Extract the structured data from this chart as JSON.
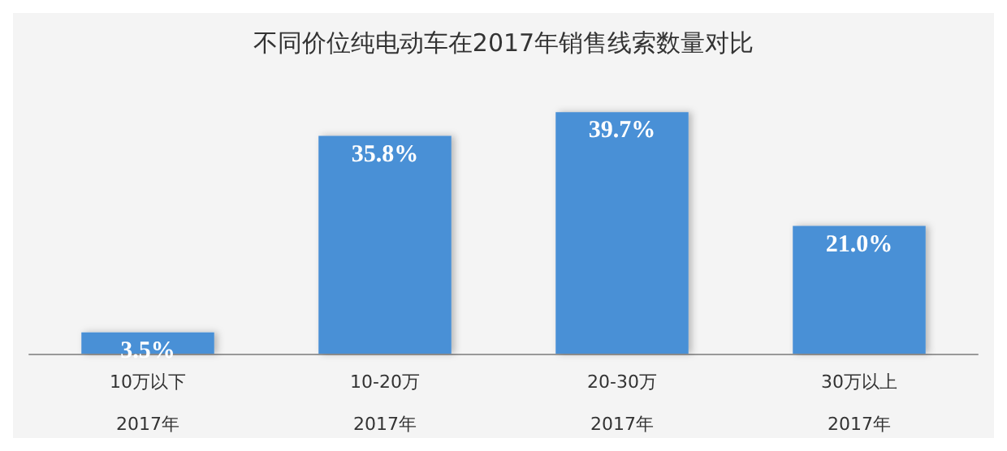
{
  "chart_data": {
    "type": "bar",
    "title": "不同价位纯电动车在2017年销售线索数量对比",
    "categories": [
      "10万以下",
      "10-20万",
      "20-30万",
      "30万以上"
    ],
    "values": [
      3.5,
      35.8,
      39.7,
      21.0
    ],
    "value_labels": [
      "3.5%",
      "35.8%",
      "39.7%",
      "21.0%"
    ],
    "color": "#4a90d6",
    "annotations": [
      "2017年",
      "2017年",
      "2017年",
      "2017年"
    ]
  }
}
